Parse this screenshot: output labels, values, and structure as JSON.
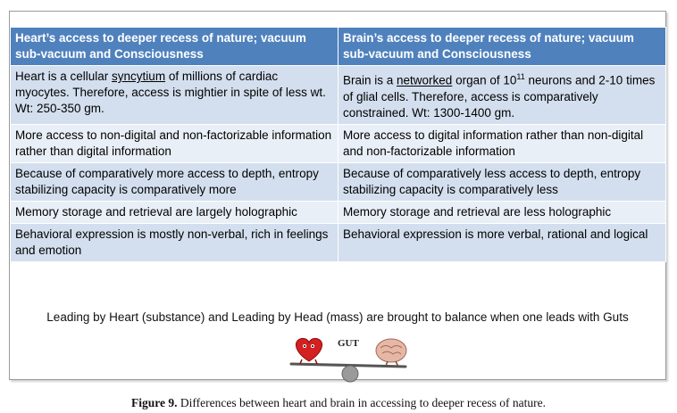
{
  "table": {
    "headers": [
      "Heart’s access to deeper recess of nature; vacuum sub-vacuum and Consciousness",
      "Brain’s access to deeper recess of nature; vacuum sub-vacuum and Consciousness"
    ],
    "row1": {
      "left": {
        "pre": "Heart is a cellular ",
        "link": "syncytium",
        "post": " of millions of cardiac myocytes. Therefore, access is mightier in spite of less wt. Wt: 250-350 gm."
      },
      "right": {
        "pre": "Brain is a ",
        "link": "networked",
        "mid": " organ of 10",
        "sup": "11",
        "post": " neurons and 2-10 times of glial cells. Therefore, access is comparatively constrained. Wt: 1300-1400 gm."
      }
    },
    "rows": [
      [
        "More access to non-digital and non-factorizable information rather than digital information",
        "More access to digital information rather than non-digital and non-factorizable information"
      ],
      [
        "Because of comparatively more access to depth, entropy stabilizing capacity is comparatively more",
        "Because of comparatively less access to depth, entropy stabilizing capacity is comparatively less"
      ],
      [
        "Memory storage and retrieval are largely holographic",
        "Memory storage and retrieval are less holographic"
      ],
      [
        "Behavioral expression is mostly non-verbal, rich in feelings and emotion",
        "Behavioral expression is more verbal, rational and logical"
      ]
    ]
  },
  "balance_text": "Leading by Heart (substance) and Leading by Head (mass) are brought to balance when one leads with Guts",
  "illustration": {
    "label": "GUT",
    "icons": [
      "heart-character-icon",
      "brain-character-icon",
      "seesaw-icon"
    ]
  },
  "figure_caption": {
    "label": "Figure 9.",
    "text": " Differences between heart and brain in accessing to deeper recess of nature."
  },
  "colors": {
    "header_bg": "#4f81bd",
    "row_dark": "#d3dfee",
    "row_light": "#e9eff7"
  }
}
